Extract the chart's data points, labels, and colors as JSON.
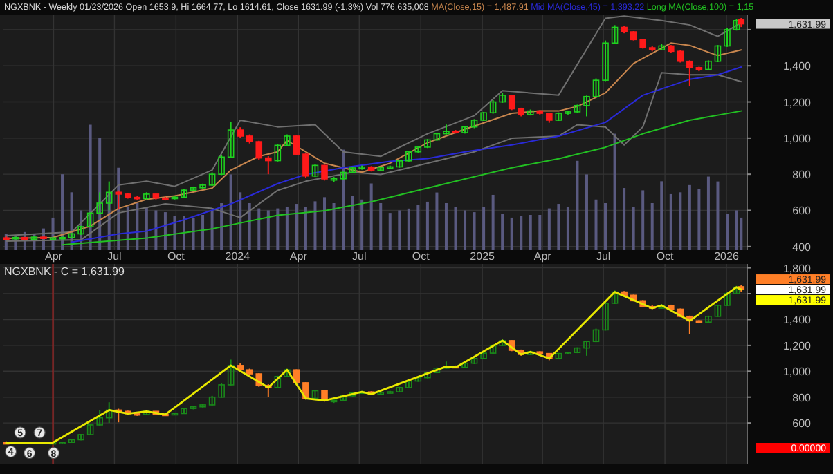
{
  "chart_data": [
    {
      "type": "candlestick",
      "title": "NGXBNK - Weekly 01/23/2026 Open 1653.9, Hi 1664.77, Lo 1614.61, Close 1631.99 (-1.3%) Vol 776,635,008",
      "legend": "top",
      "grid": true,
      "x": [
        "2023-01-20",
        "2023-02-03",
        "2023-02-17",
        "2023-03-03",
        "2023-03-17",
        "2023-03-31",
        "2023-04-14",
        "2023-04-28",
        "2023-05-12",
        "2023-05-26",
        "2023-06-09",
        "2023-06-23",
        "2023-07-07",
        "2023-07-21",
        "2023-08-04",
        "2023-08-18",
        "2023-09-01",
        "2023-09-15",
        "2023-09-29",
        "2023-10-13",
        "2023-10-27",
        "2023-11-10",
        "2023-11-24",
        "2023-12-08",
        "2023-12-22",
        "2024-01-05",
        "2024-01-19",
        "2024-02-02",
        "2024-02-16",
        "2024-03-01",
        "2024-03-15",
        "2024-03-29",
        "2024-04-12",
        "2024-04-26",
        "2024-05-10",
        "2024-05-24",
        "2024-06-07",
        "2024-06-21",
        "2024-07-05",
        "2024-07-19",
        "2024-08-02",
        "2024-08-16",
        "2024-08-30",
        "2024-09-13",
        "2024-09-27",
        "2024-10-11",
        "2024-10-25",
        "2024-11-08",
        "2024-11-22",
        "2024-12-06",
        "2024-12-20",
        "2025-01-03",
        "2025-01-17",
        "2025-01-31",
        "2025-02-14",
        "2025-02-28",
        "2025-03-14",
        "2025-03-28",
        "2025-04-11",
        "2025-04-25",
        "2025-05-09",
        "2025-05-23",
        "2025-06-06",
        "2025-06-20",
        "2025-07-04",
        "2025-07-18",
        "2025-08-01",
        "2025-08-15",
        "2025-08-29",
        "2025-09-12",
        "2025-09-26",
        "2025-10-10",
        "2025-10-24",
        "2025-11-07",
        "2025-11-21",
        "2025-12-05",
        "2025-12-19",
        "2026-01-02",
        "2026-01-16",
        "2026-01-23"
      ],
      "ohlc": [
        [
          448,
          458,
          440,
          445
        ],
        [
          445,
          455,
          440,
          450
        ],
        [
          450,
          452,
          435,
          440
        ],
        [
          440,
          456,
          436,
          452
        ],
        [
          452,
          455,
          440,
          445
        ],
        [
          445,
          452,
          438,
          448
        ],
        [
          448,
          455,
          442,
          450
        ],
        [
          450,
          475,
          446,
          470
        ],
        [
          470,
          515,
          465,
          510
        ],
        [
          510,
          590,
          505,
          585
        ],
        [
          585,
          700,
          580,
          640
        ],
        [
          640,
          760,
          600,
          700
        ],
        [
          700,
          710,
          605,
          690
        ],
        [
          690,
          695,
          665,
          672
        ],
        [
          672,
          680,
          655,
          665
        ],
        [
          665,
          700,
          660,
          690
        ],
        [
          690,
          692,
          660,
          668
        ],
        [
          668,
          675,
          655,
          665
        ],
        [
          665,
          680,
          660,
          673
        ],
        [
          673,
          718,
          670,
          712
        ],
        [
          712,
          732,
          705,
          725
        ],
        [
          725,
          748,
          720,
          740
        ],
        [
          740,
          810,
          735,
          800
        ],
        [
          800,
          905,
          795,
          895
        ],
        [
          895,
          1090,
          890,
          1045
        ],
        [
          1045,
          1060,
          1000,
          1011
        ],
        [
          1011,
          1020,
          970,
          980
        ],
        [
          980,
          985,
          880,
          890
        ],
        [
          890,
          900,
          800,
          875
        ],
        [
          875,
          965,
          870,
          960
        ],
        [
          960,
          1020,
          955,
          1011
        ],
        [
          1011,
          1015,
          905,
          911
        ],
        [
          911,
          915,
          780,
          790
        ],
        [
          790,
          855,
          785,
          849
        ],
        [
          849,
          852,
          765,
          774
        ],
        [
          774,
          785,
          755,
          775
        ],
        [
          775,
          815,
          770,
          810
        ],
        [
          810,
          840,
          805,
          835
        ],
        [
          835,
          848,
          825,
          840
        ],
        [
          840,
          845,
          815,
          823
        ],
        [
          823,
          840,
          818,
          836
        ],
        [
          836,
          848,
          830,
          841
        ],
        [
          841,
          880,
          836,
          874
        ],
        [
          874,
          930,
          870,
          924
        ],
        [
          924,
          955,
          918,
          950
        ],
        [
          950,
          995,
          945,
          990
        ],
        [
          990,
          1030,
          985,
          1024
        ],
        [
          1024,
          1075,
          1020,
          1037
        ],
        [
          1037,
          1045,
          1025,
          1030
        ],
        [
          1030,
          1068,
          1025,
          1062
        ],
        [
          1062,
          1105,
          1055,
          1099
        ],
        [
          1099,
          1145,
          1095,
          1140
        ],
        [
          1140,
          1210,
          1135,
          1200
        ],
        [
          1200,
          1250,
          1195,
          1237
        ],
        [
          1237,
          1240,
          1155,
          1162
        ],
        [
          1162,
          1168,
          1120,
          1130
        ],
        [
          1130,
          1158,
          1125,
          1150
        ],
        [
          1150,
          1155,
          1130,
          1137
        ],
        [
          1137,
          1140,
          1085,
          1099
        ],
        [
          1099,
          1142,
          1095,
          1137
        ],
        [
          1137,
          1150,
          1130,
          1145
        ],
        [
          1145,
          1185,
          1140,
          1180
        ],
        [
          1180,
          1235,
          1120,
          1230
        ],
        [
          1230,
          1330,
          1225,
          1320
        ],
        [
          1320,
          1540,
          1315,
          1526
        ],
        [
          1526,
          1625,
          1520,
          1613
        ],
        [
          1613,
          1620,
          1580,
          1588
        ],
        [
          1588,
          1592,
          1540,
          1545
        ],
        [
          1545,
          1550,
          1495,
          1500
        ],
        [
          1500,
          1510,
          1480,
          1488
        ],
        [
          1488,
          1520,
          1485,
          1510
        ],
        [
          1510,
          1515,
          1470,
          1480
        ],
        [
          1480,
          1485,
          1418,
          1425
        ],
        [
          1425,
          1430,
          1287,
          1390
        ],
        [
          1390,
          1395,
          1370,
          1380
        ],
        [
          1380,
          1430,
          1375,
          1425
        ],
        [
          1425,
          1515,
          1420,
          1510
        ],
        [
          1510,
          1610,
          1505,
          1600
        ],
        [
          1600,
          1660,
          1595,
          1650
        ],
        [
          1653.9,
          1664.77,
          1614.61,
          1631.99
        ]
      ],
      "colors": [
        "#ff1a1a",
        "#1fd11f",
        "#ff1a1a",
        "#1fd11f",
        "#ff1a1a",
        "#1fd11f",
        "#1fd11f",
        "#1fd11f",
        "#1fd11f",
        "#1fd11f",
        "#1fd11f",
        "#1fd11f",
        "#ff1a1a",
        "#ff1a1a",
        "#ff1a1a",
        "#1fd11f",
        "#ff1a1a",
        "#ff1a1a",
        "#1fd11f",
        "#1fd11f",
        "#1fd11f",
        "#1fd11f",
        "#1fd11f",
        "#1fd11f",
        "#1fd11f",
        "#ff1a1a",
        "#ff1a1a",
        "#ff1a1a",
        "#ff1a1a",
        "#1fd11f",
        "#1fd11f",
        "#ff1a1a",
        "#ff1a1a",
        "#1fd11f",
        "#ff1a1a",
        "#1fd11f",
        "#1fd11f",
        "#1fd11f",
        "#1fd11f",
        "#ff1a1a",
        "#1fd11f",
        "#1fd11f",
        "#1fd11f",
        "#1fd11f",
        "#1fd11f",
        "#1fd11f",
        "#1fd11f",
        "#1fd11f",
        "#ff1a1a",
        "#1fd11f",
        "#1fd11f",
        "#1fd11f",
        "#1fd11f",
        "#1fd11f",
        "#ff1a1a",
        "#ff1a1a",
        "#1fd11f",
        "#ff1a1a",
        "#ff1a1a",
        "#1fd11f",
        "#1fd11f",
        "#1fd11f",
        "#1fd11f",
        "#1fd11f",
        "#1fd11f",
        "#1fd11f",
        "#ff1a1a",
        "#ff1a1a",
        "#ff1a1a",
        "#ff1a1a",
        "#1fd11f",
        "#ff1a1a",
        "#ff1a1a",
        "#ff1a1a",
        "#ff1a1a",
        "#1fd11f",
        "#1fd11f",
        "#1fd11f",
        "#1fd11f",
        "#ff1a1a"
      ],
      "series": [
        {
          "type": "bar",
          "color": "#5a5a80",
          "values": [
            470,
            460,
            480,
            470,
            500,
            560,
            800,
            700,
            600,
            1074,
            1000,
            700,
            836,
            623,
            640,
            620,
            600,
            590,
            570,
            570,
            560,
            575,
            600,
            640,
            799,
            700,
            640,
            611,
            600,
            611,
            620,
            636,
            620,
            650,
            673,
            640,
            936,
            680,
            660,
            749,
            640,
            586,
            600,
            610,
            630,
            648,
            699,
            640,
            620,
            600,
            590,
            620,
            686,
            580,
            560,
            570,
            575,
            575,
            611,
            636,
            620,
            874,
            799,
            660,
            640,
            1024,
            724,
            620,
            711,
            640,
            761,
            690,
            700,
            740,
            720,
            787,
            760,
            580,
            600,
            560
          ]
        },
        {
          "type": "line",
          "color": "#707070",
          "x": [
            "2023-01-20",
            "2023-04-28",
            "2023-07-07",
            "2023-08-18",
            "2023-09-29",
            "2023-11-24",
            "2024-01-05",
            "2024-03-01",
            "2024-04-26",
            "2024-06-07",
            "2024-08-02",
            "2024-10-11",
            "2024-12-20",
            "2025-01-31",
            "2025-04-25",
            "2025-07-04",
            "2025-08-01",
            "2025-09-26",
            "2025-11-07",
            "2025-12-19",
            "2026-01-23"
          ],
          "values": [
            460,
            480,
            740,
            761,
            733,
            823,
            1099,
            1062,
            1074,
            924,
            899,
            1024,
            1124,
            1262,
            1237,
            1663,
            1675,
            1650,
            1626,
            1563,
            1638
          ]
        },
        {
          "type": "line",
          "color": "#707070",
          "x": [
            "2023-01-20",
            "2023-05-12",
            "2023-07-07",
            "2023-09-15",
            "2023-11-24",
            "2024-01-05",
            "2024-03-01",
            "2024-04-12",
            "2024-06-21",
            "2024-08-02",
            "2024-10-11",
            "2024-12-20",
            "2025-02-14",
            "2025-04-25",
            "2025-05-23",
            "2025-07-04",
            "2025-08-01",
            "2025-08-29",
            "2025-09-26",
            "2025-11-07",
            "2025-12-19",
            "2026-01-23"
          ],
          "values": [
            430,
            437,
            586,
            636,
            611,
            560,
            711,
            761,
            811,
            799,
            861,
            924,
            999,
            1011,
            1074,
            1062,
            962,
            1062,
            1362,
            1350,
            1350,
            1312
          ]
        },
        {
          "type": "line",
          "name": "MA(Close,15) = 1,487.91",
          "color": "#c8864e",
          "x": [
            "2023-01-20",
            "2023-03-31",
            "2023-05-26",
            "2023-07-07",
            "2023-08-18",
            "2023-09-29",
            "2023-11-24",
            "2023-12-22",
            "2024-02-02",
            "2024-03-01",
            "2024-03-15",
            "2024-05-10",
            "2024-07-05",
            "2024-08-16",
            "2024-10-11",
            "2024-12-06",
            "2025-02-14",
            "2025-03-28",
            "2025-04-25",
            "2025-05-23",
            "2025-07-04",
            "2025-08-15",
            "2025-10-10",
            "2025-11-07",
            "2025-12-05",
            "2025-12-19",
            "2026-01-23"
          ],
          "values": [
            445,
            450,
            513,
            611,
            661,
            680,
            723,
            823,
            899,
            924,
            987,
            861,
            811,
            861,
            974,
            1049,
            1137,
            1150,
            1150,
            1175,
            1250,
            1413,
            1526,
            1513,
            1475,
            1457,
            1487.91
          ]
        },
        {
          "type": "line",
          "name": "Mid MA(Close,45) = 1,393.22",
          "color": "#2a2ad8",
          "x": [
            "2023-04-28",
            "2023-07-07",
            "2023-08-18",
            "2023-10-13",
            "2023-12-22",
            "2024-03-01",
            "2024-04-12",
            "2024-06-07",
            "2024-08-16",
            "2024-10-11",
            "2024-12-06",
            "2025-02-14",
            "2025-04-25",
            "2025-07-04",
            "2025-08-29",
            "2025-11-07",
            "2025-12-19",
            "2026-01-23"
          ],
          "values": [
            424,
            470,
            485,
            548,
            636,
            748,
            799,
            836,
            871,
            887,
            924,
            962,
            1011,
            1087,
            1237,
            1325,
            1350,
            1393.22
          ]
        },
        {
          "type": "line",
          "name": "Long MA(Close,100) = 1,15",
          "color": "#22c022",
          "x": [
            "2023-04-14",
            "2023-08-18",
            "2023-11-24",
            "2024-03-01",
            "2024-05-10",
            "2024-07-19",
            "2024-09-27",
            "2024-12-06",
            "2025-02-14",
            "2025-04-25",
            "2025-07-04",
            "2025-08-29",
            "2025-11-07",
            "2026-01-23"
          ],
          "values": [
            410,
            447,
            498,
            573,
            598,
            648,
            711,
            774,
            836,
            886,
            949,
            1024,
            1099,
            1150
          ]
        }
      ],
      "xlim": [
        "2023-01-15",
        "2026-02-01"
      ],
      "ylim": [
        380,
        1680
      ],
      "xticks": [
        {
          "value": "2023-04-01",
          "label": "Apr"
        },
        {
          "value": "2023-07-01",
          "label": "Jul"
        },
        {
          "value": "2023-10-01",
          "label": "Oct"
        },
        {
          "value": "2024-01-01",
          "label": "2024"
        },
        {
          "value": "2024-04-01",
          "label": "Apr"
        },
        {
          "value": "2024-07-01",
          "label": "Jul"
        },
        {
          "value": "2024-10-01",
          "label": "Oct"
        },
        {
          "value": "2025-01-01",
          "label": "2025"
        },
        {
          "value": "2025-04-01",
          "label": "Apr"
        },
        {
          "value": "2025-07-01",
          "label": "Jul"
        },
        {
          "value": "2025-10-01",
          "label": "Oct"
        },
        {
          "value": "2026-01-01",
          "label": "2026"
        }
      ],
      "yticks": [
        {
          "value": 400,
          "label": "400"
        },
        {
          "value": 600,
          "label": "600"
        },
        {
          "value": 800,
          "label": "800"
        },
        {
          "value": 1000,
          "label": "1,000"
        },
        {
          "value": 1200,
          "label": "1,200"
        },
        {
          "value": 1400,
          "label": "1,400"
        },
        {
          "value": 1600,
          "label": null
        }
      ],
      "annotations": [
        "1,631.99"
      ]
    },
    {
      "type": "candlestick",
      "title": "NGXBNK - C = 1,631.99",
      "grid": true,
      "tick_labels": "y",
      "x": [
        "2023-01-20",
        "2023-02-03",
        "2023-02-17",
        "2023-03-03",
        "2023-03-17",
        "2023-03-31",
        "2023-04-14",
        "2023-04-28",
        "2023-05-12",
        "2023-05-26",
        "2023-06-09",
        "2023-06-23",
        "2023-07-07",
        "2023-07-21",
        "2023-08-04",
        "2023-08-18",
        "2023-09-01",
        "2023-09-15",
        "2023-09-29",
        "2023-10-13",
        "2023-10-27",
        "2023-11-10",
        "2023-11-24",
        "2023-12-08",
        "2023-12-22",
        "2024-01-05",
        "2024-01-19",
        "2024-02-02",
        "2024-02-16",
        "2024-03-01",
        "2024-03-15",
        "2024-03-29",
        "2024-04-12",
        "2024-04-26",
        "2024-05-10",
        "2024-05-24",
        "2024-06-07",
        "2024-06-21",
        "2024-07-05",
        "2024-07-19",
        "2024-08-02",
        "2024-08-16",
        "2024-08-30",
        "2024-09-13",
        "2024-09-27",
        "2024-10-11",
        "2024-10-25",
        "2024-11-08",
        "2024-11-22",
        "2024-12-06",
        "2024-12-20",
        "2025-01-03",
        "2025-01-17",
        "2025-01-31",
        "2025-02-14",
        "2025-02-28",
        "2025-03-14",
        "2025-03-28",
        "2025-04-11",
        "2025-04-25",
        "2025-05-09",
        "2025-05-23",
        "2025-06-06",
        "2025-06-20",
        "2025-07-04",
        "2025-07-18",
        "2025-08-01",
        "2025-08-15",
        "2025-08-29",
        "2025-09-12",
        "2025-09-26",
        "2025-10-10",
        "2025-10-24",
        "2025-11-07",
        "2025-11-21",
        "2025-12-05",
        "2025-12-19",
        "2026-01-02",
        "2026-01-16",
        "2026-01-23"
      ],
      "ohlc": [
        [
          448,
          458,
          440,
          445
        ],
        [
          445,
          455,
          440,
          450
        ],
        [
          450,
          452,
          435,
          440
        ],
        [
          440,
          456,
          436,
          452
        ],
        [
          452,
          455,
          440,
          445
        ],
        [
          445,
          452,
          438,
          448
        ],
        [
          448,
          455,
          442,
          450
        ],
        [
          450,
          475,
          446,
          470
        ],
        [
          470,
          515,
          465,
          510
        ],
        [
          510,
          590,
          505,
          585
        ],
        [
          585,
          700,
          580,
          640
        ],
        [
          640,
          760,
          600,
          700
        ],
        [
          700,
          710,
          605,
          690
        ],
        [
          690,
          695,
          665,
          672
        ],
        [
          672,
          680,
          655,
          665
        ],
        [
          665,
          700,
          660,
          690
        ],
        [
          690,
          692,
          660,
          668
        ],
        [
          668,
          675,
          655,
          665
        ],
        [
          665,
          680,
          660,
          673
        ],
        [
          673,
          718,
          670,
          712
        ],
        [
          712,
          732,
          705,
          725
        ],
        [
          725,
          748,
          720,
          740
        ],
        [
          740,
          810,
          735,
          800
        ],
        [
          800,
          905,
          795,
          895
        ],
        [
          895,
          1090,
          890,
          1045
        ],
        [
          1045,
          1060,
          1000,
          1011
        ],
        [
          1011,
          1020,
          970,
          980
        ],
        [
          980,
          985,
          880,
          890
        ],
        [
          890,
          900,
          800,
          875
        ],
        [
          875,
          965,
          870,
          960
        ],
        [
          960,
          1020,
          955,
          1011
        ],
        [
          1011,
          1015,
          905,
          911
        ],
        [
          911,
          915,
          780,
          790
        ],
        [
          790,
          855,
          785,
          849
        ],
        [
          849,
          852,
          765,
          774
        ],
        [
          774,
          785,
          755,
          775
        ],
        [
          775,
          815,
          770,
          810
        ],
        [
          810,
          840,
          805,
          835
        ],
        [
          835,
          848,
          825,
          840
        ],
        [
          840,
          845,
          815,
          823
        ],
        [
          823,
          840,
          818,
          836
        ],
        [
          836,
          848,
          830,
          841
        ],
        [
          841,
          880,
          836,
          874
        ],
        [
          874,
          930,
          870,
          924
        ],
        [
          924,
          955,
          918,
          950
        ],
        [
          950,
          995,
          945,
          990
        ],
        [
          990,
          1030,
          985,
          1024
        ],
        [
          1024,
          1075,
          1020,
          1037
        ],
        [
          1037,
          1045,
          1025,
          1030
        ],
        [
          1030,
          1068,
          1025,
          1062
        ],
        [
          1062,
          1105,
          1055,
          1099
        ],
        [
          1099,
          1145,
          1095,
          1140
        ],
        [
          1140,
          1210,
          1135,
          1200
        ],
        [
          1200,
          1250,
          1195,
          1237
        ],
        [
          1237,
          1240,
          1155,
          1162
        ],
        [
          1162,
          1168,
          1120,
          1130
        ],
        [
          1130,
          1158,
          1125,
          1150
        ],
        [
          1150,
          1155,
          1130,
          1137
        ],
        [
          1137,
          1140,
          1085,
          1099
        ],
        [
          1099,
          1142,
          1095,
          1137
        ],
        [
          1137,
          1150,
          1130,
          1145
        ],
        [
          1145,
          1185,
          1140,
          1180
        ],
        [
          1180,
          1235,
          1120,
          1230
        ],
        [
          1230,
          1330,
          1225,
          1320
        ],
        [
          1320,
          1540,
          1315,
          1526
        ],
        [
          1526,
          1625,
          1520,
          1613
        ],
        [
          1613,
          1620,
          1580,
          1588
        ],
        [
          1588,
          1592,
          1540,
          1545
        ],
        [
          1545,
          1550,
          1495,
          1500
        ],
        [
          1500,
          1510,
          1480,
          1488
        ],
        [
          1488,
          1520,
          1485,
          1510
        ],
        [
          1510,
          1515,
          1470,
          1480
        ],
        [
          1480,
          1485,
          1418,
          1425
        ],
        [
          1425,
          1430,
          1287,
          1390
        ],
        [
          1390,
          1395,
          1370,
          1380
        ],
        [
          1380,
          1430,
          1375,
          1425
        ],
        [
          1425,
          1515,
          1420,
          1510
        ],
        [
          1510,
          1610,
          1505,
          1600
        ],
        [
          1600,
          1660,
          1595,
          1650
        ],
        [
          1653.9,
          1664.77,
          1614.61,
          1631.99
        ]
      ],
      "colors": [
        "#ff7f27",
        "#1a8a1a",
        "#ff7f27",
        "#1a8a1a",
        "#ff7f27",
        "#1a8a1a",
        "#1a8a1a",
        "#1a8a1a",
        "#1a8a1a",
        "#1a8a1a",
        "#1a8a1a",
        "#1a8a1a",
        "#ff7f27",
        "#ff7f27",
        "#ff7f27",
        "#1a8a1a",
        "#ff7f27",
        "#ff7f27",
        "#1a8a1a",
        "#1a8a1a",
        "#1a8a1a",
        "#1a8a1a",
        "#1a8a1a",
        "#1a8a1a",
        "#1a8a1a",
        "#ff7f27",
        "#ff7f27",
        "#ff7f27",
        "#ff7f27",
        "#1a8a1a",
        "#1a8a1a",
        "#ff7f27",
        "#ff7f27",
        "#1a8a1a",
        "#ff7f27",
        "#1a8a1a",
        "#1a8a1a",
        "#1a8a1a",
        "#1a8a1a",
        "#ff7f27",
        "#1a8a1a",
        "#1a8a1a",
        "#1a8a1a",
        "#1a8a1a",
        "#1a8a1a",
        "#1a8a1a",
        "#1a8a1a",
        "#1a8a1a",
        "#ff7f27",
        "#1a8a1a",
        "#1a8a1a",
        "#1a8a1a",
        "#1a8a1a",
        "#1a8a1a",
        "#ff7f27",
        "#ff7f27",
        "#1a8a1a",
        "#ff7f27",
        "#ff7f27",
        "#1a8a1a",
        "#1a8a1a",
        "#1a8a1a",
        "#1a8a1a",
        "#1a8a1a",
        "#1a8a1a",
        "#1a8a1a",
        "#ff7f27",
        "#ff7f27",
        "#ff7f27",
        "#ff7f27",
        "#1a8a1a",
        "#ff7f27",
        "#ff7f27",
        "#ff7f27",
        "#ff7f27",
        "#1a8a1a",
        "#1a8a1a",
        "#1a8a1a",
        "#1a8a1a",
        "#ff7f27"
      ],
      "series": [
        {
          "type": "line",
          "color": "#e8e800",
          "x": [
            "2023-01-20",
            "2023-03-31",
            "2023-06-23",
            "2023-07-21",
            "2023-08-18",
            "2023-09-15",
            "2023-12-22",
            "2024-02-16",
            "2024-03-15",
            "2024-04-12",
            "2024-05-10",
            "2024-07-05",
            "2024-07-19",
            "2024-11-08",
            "2024-11-22",
            "2025-01-31",
            "2025-02-28",
            "2025-03-14",
            "2025-04-11",
            "2025-07-18",
            "2025-09-12",
            "2025-09-26",
            "2025-11-07",
            "2026-01-16",
            "2026-01-23"
          ],
          "values": [
            445,
            448,
            700,
            672,
            690,
            665,
            1045,
            875,
            1011,
            790,
            774,
            840,
            823,
            1037,
            1030,
            1237,
            1130,
            1150,
            1099,
            1613,
            1488,
            1510,
            1390,
            1650,
            1631.99
          ]
        }
      ],
      "ref_lines": [
        {
          "axis": "x",
          "value": "2023-03-31",
          "color": "#b02020"
        }
      ],
      "xlim": [
        "2023-01-15",
        "2026-02-01"
      ],
      "ylim": [
        280,
        1830
      ],
      "xticks": [
        {
          "value": "2023-04-01",
          "label": null
        },
        {
          "value": "2023-07-01",
          "label": null
        },
        {
          "value": "2023-10-01",
          "label": null
        },
        {
          "value": "2024-01-01",
          "label": null
        },
        {
          "value": "2024-04-01",
          "label": null
        },
        {
          "value": "2024-07-01",
          "label": null
        },
        {
          "value": "2024-10-01",
          "label": null
        },
        {
          "value": "2025-01-01",
          "label": null
        },
        {
          "value": "2025-04-01",
          "label": null
        },
        {
          "value": "2025-07-01",
          "label": null
        },
        {
          "value": "2025-10-01",
          "label": null
        },
        {
          "value": "2026-01-01",
          "label": null
        }
      ],
      "yticks": [
        {
          "value": 600,
          "label": "600"
        },
        {
          "value": 800,
          "label": "800"
        },
        {
          "value": 1000,
          "label": "1,000"
        },
        {
          "value": 1200,
          "label": "1,200"
        },
        {
          "value": 1400,
          "label": "1,400"
        },
        {
          "value": 1600,
          "label": null
        },
        {
          "value": 1800,
          "label": "1,800"
        }
      ],
      "annotations": [
        {
          "text": "4",
          "x": "2023-01-27",
          "y": 379
        },
        {
          "text": "5",
          "x": "2023-02-10",
          "y": 526
        },
        {
          "text": "6",
          "x": "2023-02-24",
          "y": 368
        },
        {
          "text": "7",
          "x": "2023-03-11",
          "y": 526
        },
        {
          "text": "8",
          "x": "2023-04-01",
          "y": 368
        },
        "1,631.99",
        "1,631.99",
        "1,631.99",
        "0.00000"
      ]
    }
  ]
}
